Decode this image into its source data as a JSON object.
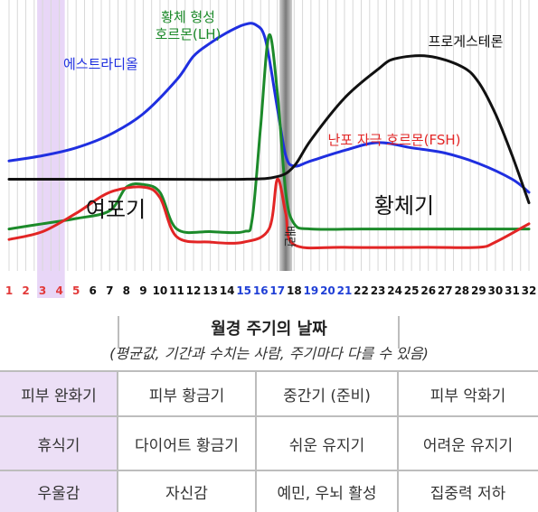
{
  "chart_data": {
    "type": "line",
    "xlim": [
      1,
      32
    ],
    "ylim": [
      0,
      100
    ],
    "x_ticks": [
      {
        "label": "1",
        "color": "#e23a3a"
      },
      {
        "label": "2",
        "color": "#e23a3a"
      },
      {
        "label": "3",
        "color": "#e23a3a"
      },
      {
        "label": "4",
        "color": "#e23a3a"
      },
      {
        "label": "5",
        "color": "#e23a3a"
      },
      {
        "label": "6",
        "color": "#111111"
      },
      {
        "label": "7",
        "color": "#111111"
      },
      {
        "label": "8",
        "color": "#111111"
      },
      {
        "label": "9",
        "color": "#111111"
      },
      {
        "label": "10",
        "color": "#111111"
      },
      {
        "label": "11",
        "color": "#111111"
      },
      {
        "label": "12",
        "color": "#111111"
      },
      {
        "label": "13",
        "color": "#111111"
      },
      {
        "label": "14",
        "color": "#111111"
      },
      {
        "label": "15",
        "color": "#1f3fd6"
      },
      {
        "label": "16",
        "color": "#1f3fd6"
      },
      {
        "label": "17",
        "color": "#1f3fd6"
      },
      {
        "label": "18",
        "color": "#111111"
      },
      {
        "label": "19",
        "color": "#1f3fd6"
      },
      {
        "label": "20",
        "color": "#1f3fd6"
      },
      {
        "label": "21",
        "color": "#1f3fd6"
      },
      {
        "label": "22",
        "color": "#111111"
      },
      {
        "label": "23",
        "color": "#111111"
      },
      {
        "label": "24",
        "color": "#111111"
      },
      {
        "label": "25",
        "color": "#111111"
      },
      {
        "label": "26",
        "color": "#111111"
      },
      {
        "label": "27",
        "color": "#111111"
      },
      {
        "label": "28",
        "color": "#111111"
      },
      {
        "label": "29",
        "color": "#111111"
      },
      {
        "label": "30",
        "color": "#111111"
      },
      {
        "label": "31",
        "color": "#111111"
      },
      {
        "label": "32",
        "color": "#111111"
      }
    ],
    "highlight_band": {
      "from_day": 3,
      "to_day": 4,
      "color": "#e8d6f7"
    },
    "ovulation_day": 17.5,
    "ovulation_label": "배란",
    "phase_labels": [
      {
        "text": "여포기",
        "day": 6
      },
      {
        "text": "황체기",
        "day": 25
      }
    ],
    "series": [
      {
        "name": "에스트라디올",
        "color": "#1f2fe0",
        "x": [
          1,
          3,
          5,
          7,
          9,
          11,
          12,
          13,
          14,
          15,
          15.7,
          16.3,
          17,
          17.5,
          18,
          19,
          21,
          23,
          25,
          27,
          29,
          31,
          32
        ],
        "y": [
          42,
          44,
          47,
          52,
          60,
          73,
          82,
          87,
          91,
          94,
          94,
          88,
          62,
          44,
          40,
          42,
          46,
          49,
          47,
          45,
          41,
          35,
          30
        ]
      },
      {
        "name": "황체 형성\n호르몬(LH)",
        "color": "#1c8a2a",
        "x": [
          1,
          3,
          5,
          7,
          8,
          9,
          10,
          11,
          13,
          15,
          15.5,
          16,
          16.5,
          17,
          17.5,
          18,
          19,
          22,
          26,
          30,
          32
        ],
        "y": [
          16,
          18,
          20,
          23,
          32,
          33,
          30,
          16,
          15,
          15,
          20,
          55,
          90,
          68,
          30,
          18,
          16,
          16,
          16,
          16,
          16
        ]
      },
      {
        "name": "프로게스테론",
        "color": "#111111",
        "x": [
          1,
          5,
          10,
          15,
          17,
          18,
          19,
          21,
          23,
          24,
          26,
          28,
          29,
          30,
          31,
          32
        ],
        "y": [
          35,
          35,
          35,
          35,
          36,
          40,
          50,
          66,
          77,
          81,
          82,
          78,
          72,
          60,
          44,
          26
        ]
      },
      {
        "name": "난포 자극 호르몬(FSH)",
        "color": "#e22525",
        "x": [
          1,
          3,
          5,
          7,
          9,
          10,
          11,
          13,
          15,
          16.5,
          17,
          17.5,
          18,
          21,
          26,
          29,
          30,
          32
        ],
        "y": [
          12,
          15,
          22,
          30,
          32,
          28,
          13,
          11,
          11,
          16,
          35,
          22,
          10,
          9,
          9,
          9,
          11,
          18
        ]
      }
    ]
  },
  "table": {
    "title": "월경 주기의 날짜",
    "subtitle": "(평균값, 기간과 수치는 사람, 주기마다 다를 수 있음)",
    "rows": [
      [
        "피부 완화기",
        "피부 황금기",
        "중간기 (준비)",
        "피부 악화기"
      ],
      [
        "휴식기",
        "다이어트 황금기",
        "쉬운 유지기",
        "어려운 유지기"
      ],
      [
        "우울감",
        "자신감",
        "예민, 우뇌 활성",
        "집중력 저하"
      ]
    ],
    "highlight_color": "#ecdff6"
  }
}
